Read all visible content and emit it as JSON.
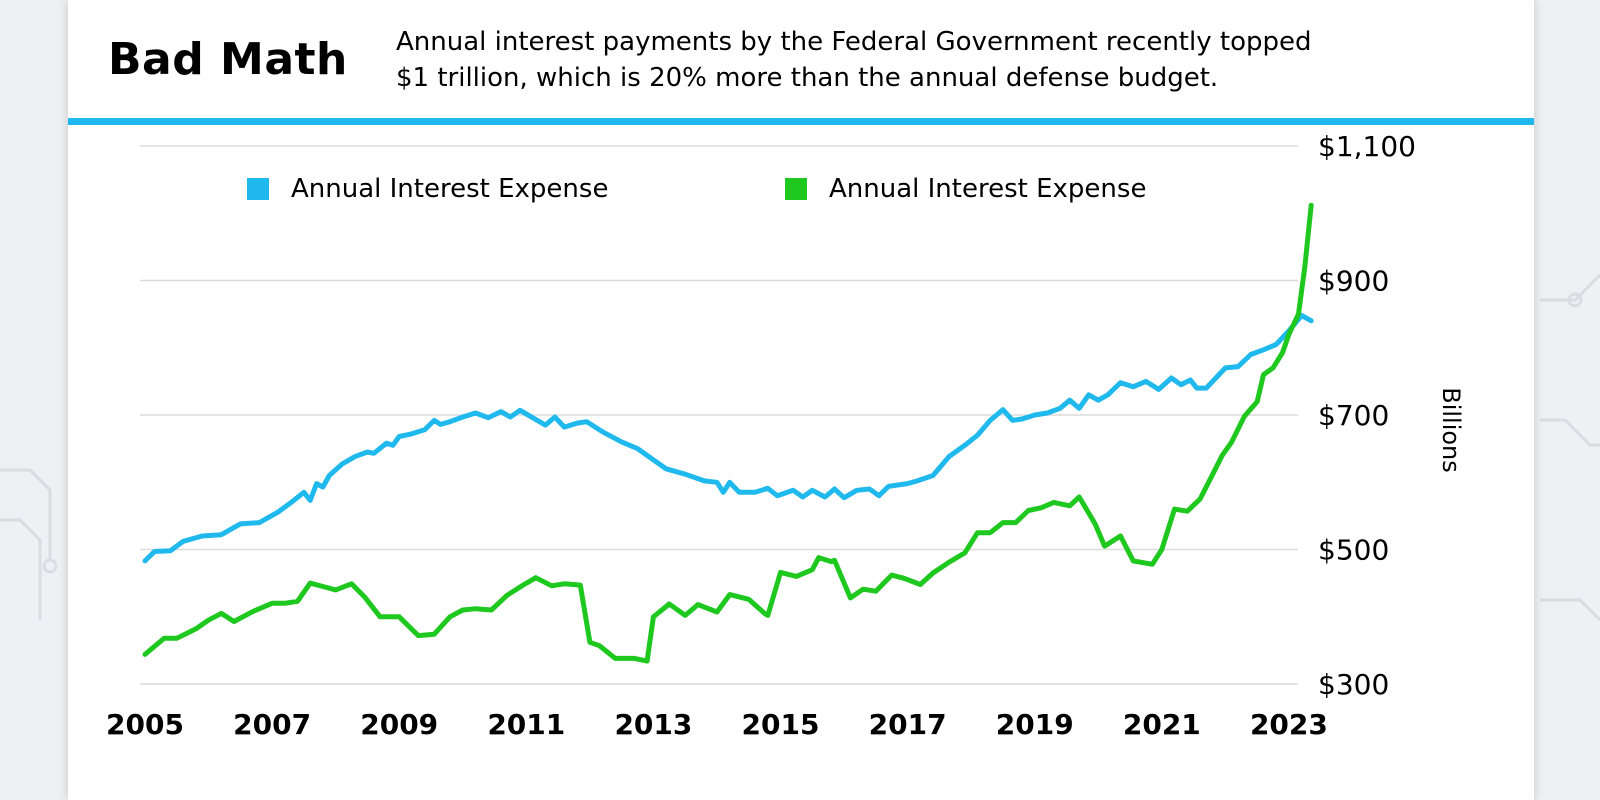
{
  "header": {
    "title": "Bad Math",
    "subtitle_line1": "Annual interest payments by the Federal Government recently topped",
    "subtitle_line2": "$1 trillion, which is 20% more than the annual defense budget."
  },
  "colors": {
    "accent": "#20b9ee",
    "series_blue": "#20b9ee",
    "series_green": "#1ec81e",
    "grid": "#dcdcdc"
  },
  "chart_data": {
    "type": "line",
    "ylabel": "Billions",
    "ylim": [
      300,
      1100
    ],
    "y_ticks": [
      300,
      500,
      700,
      900,
      1100
    ],
    "y_tick_labels": [
      "$300",
      "$500",
      "$700",
      "$900",
      "$1,100"
    ],
    "xlim": [
      2005,
      2023.3
    ],
    "x_ticks": [
      2005,
      2007,
      2009,
      2011,
      2013,
      2015,
      2017,
      2019,
      2021,
      2023
    ],
    "x_tick_labels": [
      "2005",
      "2007",
      "2009",
      "2011",
      "2013",
      "2015",
      "2017",
      "2019",
      "2021",
      "2023"
    ],
    "grid": true,
    "legend_position": "top",
    "series": [
      {
        "name": "Annual Interest Expense",
        "color": "#20b9ee",
        "x": [
          2005.0,
          2005.15,
          2005.4,
          2005.6,
          2005.9,
          2006.2,
          2006.5,
          2006.8,
          2007.1,
          2007.3,
          2007.5,
          2007.6,
          2007.7,
          2007.8,
          2007.9,
          2008.1,
          2008.3,
          2008.5,
          2008.6,
          2008.8,
          2008.9,
          2009.0,
          2009.2,
          2009.4,
          2009.55,
          2009.65,
          2009.8,
          2010.0,
          2010.2,
          2010.4,
          2010.6,
          2010.75,
          2010.9,
          2011.1,
          2011.3,
          2011.45,
          2011.6,
          2011.8,
          2011.95,
          2012.2,
          2012.5,
          2012.75,
          2012.9,
          2013.2,
          2013.5,
          2013.8,
          2014.0,
          2014.1,
          2014.2,
          2014.35,
          2014.6,
          2014.8,
          2014.95,
          2015.2,
          2015.35,
          2015.5,
          2015.7,
          2015.85,
          2016.0,
          2016.2,
          2016.4,
          2016.55,
          2016.7,
          2017.0,
          2017.15,
          2017.4,
          2017.65,
          2017.9,
          2018.1,
          2018.3,
          2018.5,
          2018.65,
          2018.8,
          2019.0,
          2019.2,
          2019.4,
          2019.55,
          2019.7,
          2019.85,
          2020.0,
          2020.15,
          2020.35,
          2020.55,
          2020.75,
          2020.95,
          2021.15,
          2021.3,
          2021.45,
          2021.55,
          2021.7,
          2021.85,
          2022.0,
          2022.2,
          2022.4,
          2022.6,
          2022.8,
          2023.0,
          2023.2,
          2023.35
        ],
        "values": [
          483,
          497,
          498,
          512,
          520,
          522,
          538,
          540,
          556,
          570,
          585,
          573,
          598,
          593,
          610,
          627,
          638,
          645,
          643,
          658,
          655,
          668,
          672,
          678,
          692,
          686,
          690,
          697,
          703,
          696,
          705,
          697,
          707,
          696,
          685,
          697,
          682,
          688,
          690,
          675,
          660,
          650,
          640,
          620,
          612,
          602,
          600,
          585,
          600,
          585,
          585,
          591,
          580,
          588,
          578,
          588,
          578,
          590,
          577,
          588,
          590,
          580,
          594,
          598,
          602,
          610,
          638,
          655,
          670,
          692,
          708,
          692,
          694,
          700,
          703,
          710,
          722,
          710,
          730,
          722,
          730,
          748,
          742,
          750,
          738,
          755,
          745,
          752,
          740,
          740,
          755,
          770,
          772,
          790,
          797,
          805,
          825,
          848,
          840
        ]
      },
      {
        "name": "Annual Interest Expense",
        "color": "#1ec81e",
        "x": [
          2005.0,
          2005.3,
          2005.5,
          2005.8,
          2006.0,
          2006.2,
          2006.4,
          2006.7,
          2007.0,
          2007.2,
          2007.4,
          2007.6,
          2007.8,
          2008.0,
          2008.25,
          2008.45,
          2008.7,
          2009.0,
          2009.3,
          2009.55,
          2009.8,
          2010.0,
          2010.2,
          2010.45,
          2010.7,
          2010.95,
          2011.15,
          2011.4,
          2011.6,
          2011.85,
          2012.0,
          2012.15,
          2012.4,
          2012.7,
          2012.9,
          2013.0,
          2013.25,
          2013.5,
          2013.7,
          2014.0,
          2014.2,
          2014.5,
          2014.75,
          2014.8,
          2015.0,
          2015.25,
          2015.5,
          2015.6,
          2015.8,
          2015.85,
          2016.1,
          2016.3,
          2016.5,
          2016.75,
          2016.95,
          2017.2,
          2017.4,
          2017.65,
          2017.9,
          2018.1,
          2018.3,
          2018.5,
          2018.7,
          2018.9,
          2019.1,
          2019.3,
          2019.55,
          2019.7,
          2019.95,
          2020.1,
          2020.35,
          2020.55,
          2020.85,
          2021.0,
          2021.2,
          2021.4,
          2021.6,
          2021.8,
          2021.95,
          2022.1,
          2022.3,
          2022.5,
          2022.6,
          2022.75,
          2022.9,
          2023.0,
          2023.15,
          2023.25,
          2023.35
        ],
        "values": [
          344,
          368,
          368,
          382,
          395,
          405,
          393,
          408,
          420,
          420,
          423,
          450,
          445,
          440,
          449,
          430,
          400,
          400,
          372,
          374,
          400,
          410,
          412,
          410,
          432,
          447,
          458,
          446,
          449,
          447,
          362,
          357,
          338,
          338,
          334,
          400,
          419,
          402,
          418,
          407,
          433,
          426,
          405,
          402,
          466,
          460,
          470,
          488,
          482,
          484,
          428,
          441,
          438,
          462,
          457,
          448,
          465,
          481,
          495,
          525,
          525,
          540,
          540,
          558,
          562,
          570,
          565,
          578,
          538,
          505,
          520,
          483,
          478,
          500,
          560,
          557,
          575,
          612,
          640,
          660,
          698,
          720,
          760,
          770,
          793,
          820,
          850,
          920,
          1012
        ]
      }
    ]
  }
}
